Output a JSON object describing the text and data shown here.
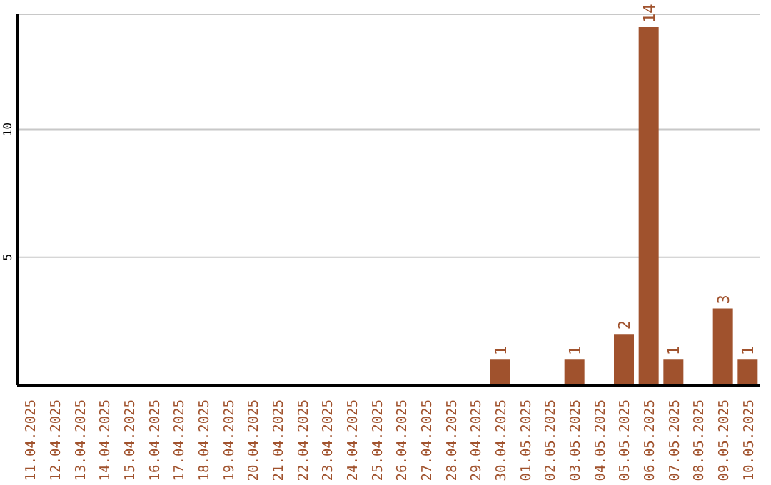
{
  "chart_data": {
    "type": "bar",
    "categories": [
      "11.04.2025",
      "12.04.2025",
      "13.04.2025",
      "14.04.2025",
      "15.04.2025",
      "16.04.2025",
      "17.04.2025",
      "18.04.2025",
      "19.04.2025",
      "20.04.2025",
      "21.04.2025",
      "22.04.2025",
      "23.04.2025",
      "24.04.2025",
      "25.04.2025",
      "26.04.2025",
      "27.04.2025",
      "28.04.2025",
      "29.04.2025",
      "30.04.2025",
      "01.05.2025",
      "02.05.2025",
      "03.05.2025",
      "04.05.2025",
      "05.05.2025",
      "06.05.2025",
      "07.05.2025",
      "08.05.2025",
      "09.05.2025",
      "10.05.2025"
    ],
    "values": [
      0,
      0,
      0,
      0,
      0,
      0,
      0,
      0,
      0,
      0,
      0,
      0,
      0,
      0,
      0,
      0,
      0,
      0,
      0,
      1,
      0,
      0,
      1,
      0,
      2,
      14,
      1,
      0,
      3,
      1
    ],
    "value_labels": [
      null,
      null,
      null,
      null,
      null,
      null,
      null,
      null,
      null,
      null,
      null,
      null,
      null,
      null,
      null,
      null,
      null,
      null,
      null,
      "1",
      null,
      null,
      "1",
      null,
      "2",
      "14",
      "1",
      null,
      "3",
      "1"
    ],
    "color": "#a0522d",
    "ylim": [
      0,
      14.5
    ],
    "yticks": [
      5,
      10
    ],
    "grid": "y"
  }
}
